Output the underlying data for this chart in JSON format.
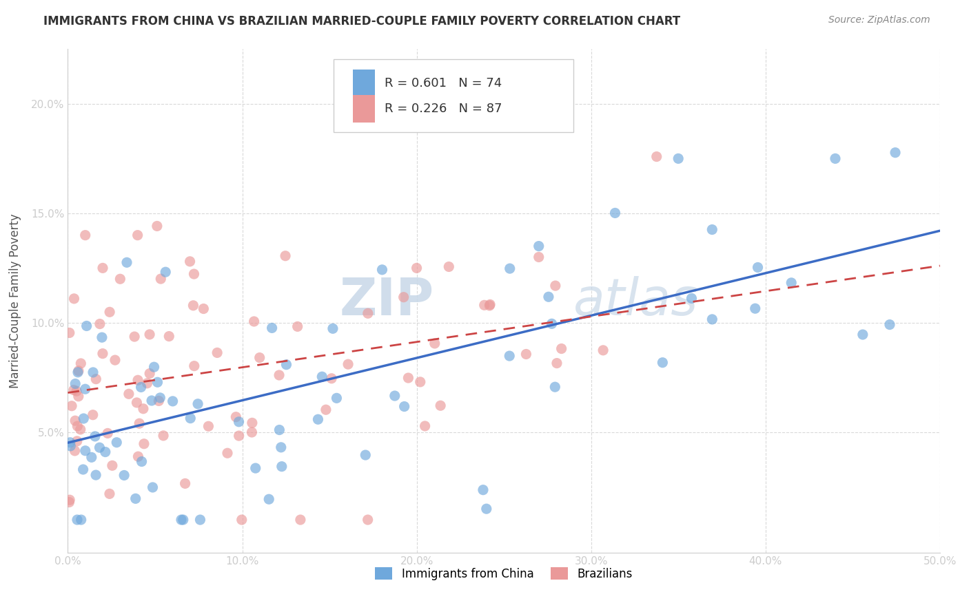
{
  "title": "IMMIGRANTS FROM CHINA VS BRAZILIAN MARRIED-COUPLE FAMILY POVERTY CORRELATION CHART",
  "source": "Source: ZipAtlas.com",
  "ylabel": "Married-Couple Family Poverty",
  "xlim": [
    0.0,
    0.5
  ],
  "ylim": [
    -0.005,
    0.225
  ],
  "xticks": [
    0.0,
    0.1,
    0.2,
    0.3,
    0.4,
    0.5
  ],
  "xtick_labels": [
    "0.0%",
    "10.0%",
    "20.0%",
    "30.0%",
    "40.0%",
    "50.0%"
  ],
  "yticks": [
    0.05,
    0.1,
    0.15,
    0.2
  ],
  "ytick_labels": [
    "5.0%",
    "10.0%",
    "15.0%",
    "20.0%"
  ],
  "china_color": "#6fa8dc",
  "brazil_color": "#ea9999",
  "china_line_color": "#3c6cc5",
  "brazil_line_color": "#cc4444",
  "china_R": 0.601,
  "china_N": 74,
  "brazil_R": 0.226,
  "brazil_N": 87,
  "watermark_zip": "ZIP",
  "watermark_atlas": "atlas",
  "background_color": "#ffffff",
  "grid_color": "#d0d0d0",
  "legend_label_china": "Immigrants from China",
  "legend_label_brazil": "Brazilians"
}
